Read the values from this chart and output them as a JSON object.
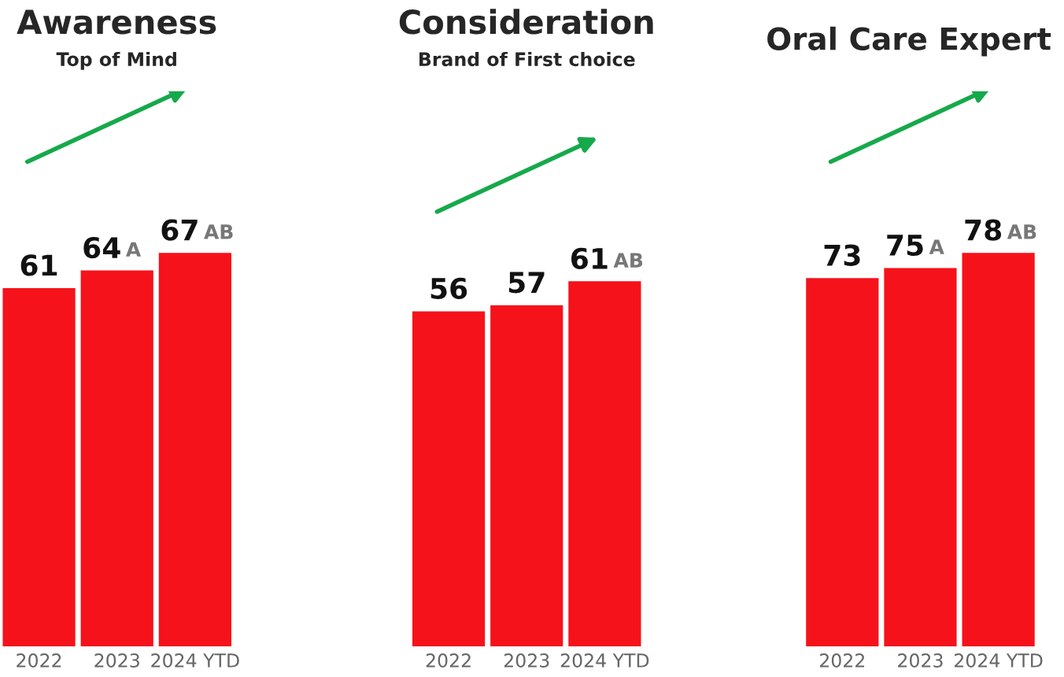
{
  "chart_data": [
    {
      "type": "bar",
      "title": "Awareness",
      "subtitle": "Top of Mind",
      "categories": [
        "2022",
        "2023",
        "2024 YTD"
      ],
      "values": [
        61,
        64,
        67
      ],
      "color": "#f5121b",
      "data_labels": true,
      "annotations": [
        {
          "text": "A",
          "x": "2023",
          "y": 64
        },
        {
          "text": "AB",
          "x": "2024 YTD",
          "y": 67
        }
      ]
    },
    {
      "type": "bar",
      "title": "Consideration",
      "subtitle": "Brand of First choice",
      "categories": [
        "2022",
        "2023",
        "2024 YTD"
      ],
      "values": [
        56,
        57,
        61
      ],
      "color": "#f5121b",
      "data_labels": true,
      "annotations": [
        {
          "text": "AB",
          "x": "2024 YTD",
          "y": 61
        }
      ]
    },
    {
      "type": "bar",
      "title": "Oral Care Expert",
      "categories": [
        "2022",
        "2023",
        "2024 YTD"
      ],
      "values": [
        73,
        75,
        78
      ],
      "color": "#f5121b",
      "data_labels": true,
      "annotations": [
        {
          "text": "A",
          "x": "2023",
          "y": 75
        },
        {
          "text": "AB",
          "x": "2024 YTD",
          "y": 78
        }
      ]
    }
  ]
}
